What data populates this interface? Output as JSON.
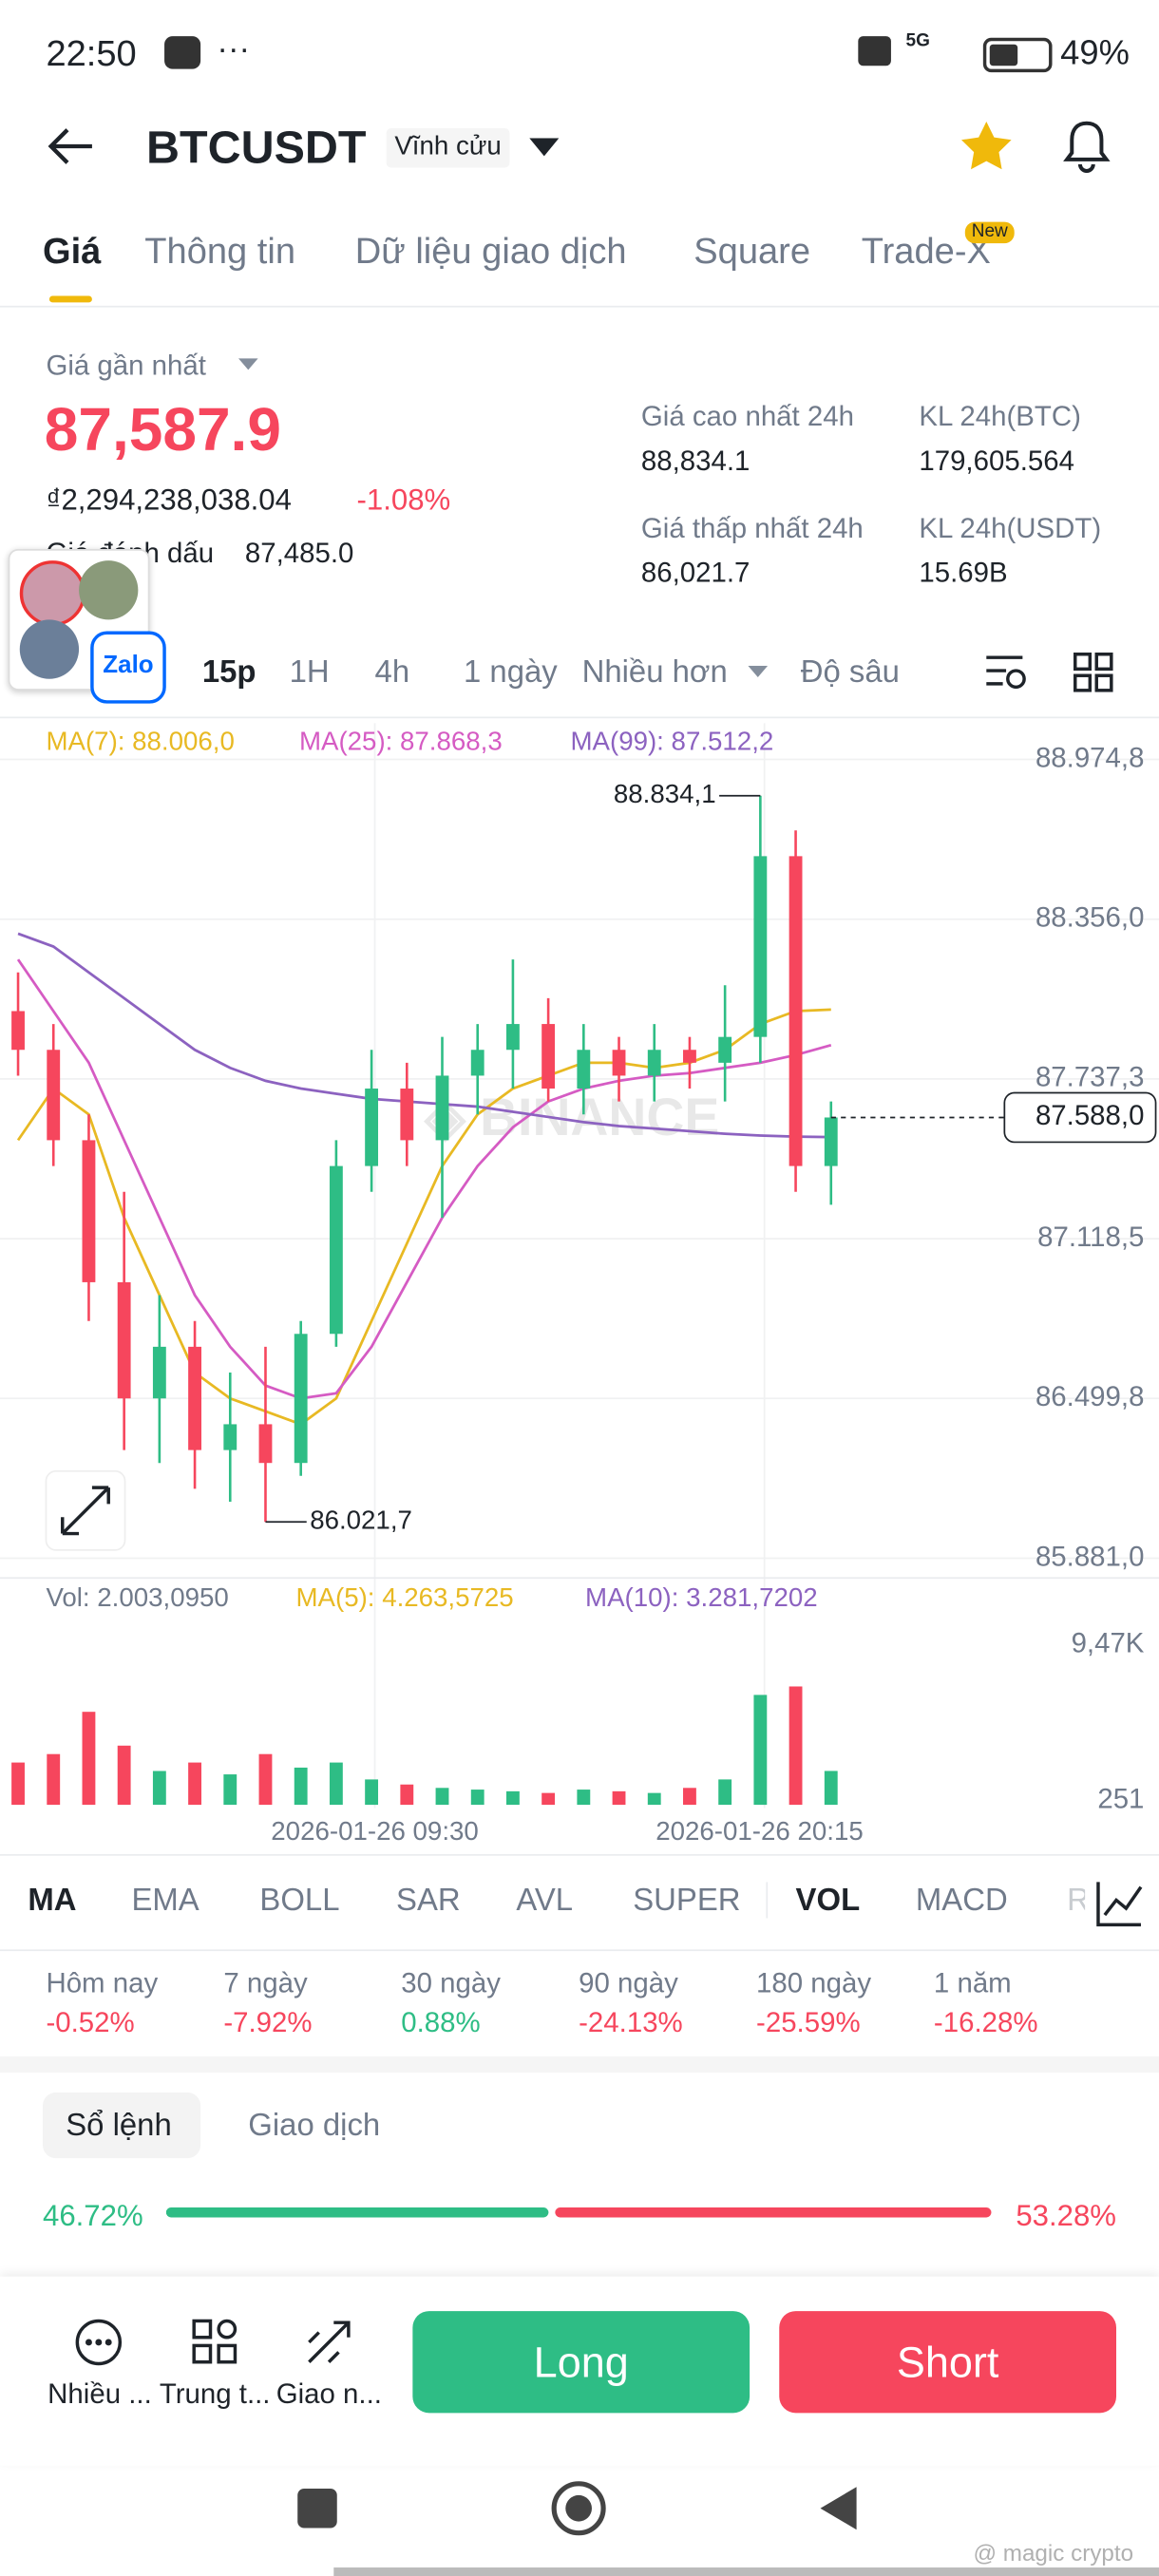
{
  "status": {
    "time": "22:50",
    "network": "5G",
    "battery": "49%"
  },
  "header": {
    "symbol": "BTCUSDT",
    "contract": "Vĩnh cửu"
  },
  "tabs": {
    "items": [
      "Giá",
      "Thông tin",
      "Dữ liệu giao dịch",
      "Square",
      "Trade-X"
    ],
    "badge": "New"
  },
  "price": {
    "label": "Giá gần nhất",
    "last": "87,587.9",
    "fiat": "₫2,294,238,038.04",
    "change": "-1.08%",
    "mark_label": "Giá đánh dấu",
    "mark": "87,485.0"
  },
  "stats": [
    {
      "label": "Giá cao nhất 24h",
      "value": "88,834.1"
    },
    {
      "label": "KL 24h(BTC)",
      "value": "179,605.564"
    },
    {
      "label": "Giá thấp nhất 24h",
      "value": "86,021.7"
    },
    {
      "label": "KL 24h(USDT)",
      "value": "15.69B"
    }
  ],
  "overlay": {
    "app": "Zalo"
  },
  "intervals": [
    "15p",
    "1H",
    "4h",
    "1 ngày",
    "Nhiều hơn",
    "Độ sâu"
  ],
  "chart_data": {
    "type": "candlestick",
    "ma_labels": [
      "MA(7): 88.006,0",
      "MA(25): 87.868,3",
      "MA(99): 87.512,2"
    ],
    "ylim": [
      85881.0,
      88974.8
    ],
    "yticks": [
      {
        "value": 88974.8,
        "label": "88.974,8"
      },
      {
        "value": 88356.0,
        "label": "88.356,0"
      },
      {
        "value": 87737.3,
        "label": "87.737,3"
      },
      {
        "value": 87118.5,
        "label": "87.118,5"
      },
      {
        "value": 86499.8,
        "label": "86.499,8"
      },
      {
        "value": 85881.0,
        "label": "85.881,0"
      }
    ],
    "x_labels": [
      "2026-01-26 09:30",
      "2026-01-26 20:15"
    ],
    "open": [
      88000,
      87850,
      87500,
      86950,
      86500,
      86700,
      86300,
      86400,
      86250,
      86750,
      87400,
      87700,
      87500,
      87750,
      87850,
      87950,
      87700,
      87850,
      87750,
      87850,
      87800,
      87900,
      88600,
      87400
    ],
    "high": [
      88150,
      87950,
      87600,
      87300,
      86900,
      86800,
      86600,
      86700,
      86800,
      87500,
      87850,
      87800,
      87900,
      87950,
      88200,
      88050,
      87950,
      87900,
      87950,
      87900,
      88100,
      88834.1,
      88700,
      87650
    ],
    "low": [
      87750,
      87400,
      86800,
      86300,
      86250,
      86150,
      86100,
      86021.7,
      86200,
      86700,
      87300,
      87400,
      87200,
      87600,
      87700,
      87650,
      87600,
      87650,
      87650,
      87700,
      87650,
      87800,
      87300,
      87250
    ],
    "close": [
      87850,
      87500,
      86950,
      86500,
      86700,
      86300,
      86400,
      86250,
      86750,
      87400,
      87700,
      87500,
      87750,
      87850,
      87950,
      87700,
      87850,
      87750,
      87850,
      87800,
      87900,
      88600,
      87400,
      87588.0
    ],
    "up_color": "#2ebd85",
    "down_color": "#f6465d",
    "ma_series": [
      {
        "color": "#e8b923",
        "values": [
          87500,
          87700,
          87600,
          87200,
          86900,
          86600,
          86500,
          86450,
          86400,
          86500,
          86800,
          87100,
          87400,
          87600,
          87700,
          87750,
          87800,
          87800,
          87780,
          87800,
          87850,
          87950,
          88000,
          88006.0
        ]
      },
      {
        "color": "#d55bc3",
        "values": [
          88200,
          88000,
          87800,
          87500,
          87200,
          86900,
          86700,
          86550,
          86500,
          86520,
          86700,
          86950,
          87200,
          87400,
          87550,
          87650,
          87700,
          87730,
          87750,
          87760,
          87780,
          87800,
          87830,
          87868.3
        ]
      },
      {
        "color": "#8c62c0",
        "values": [
          88300,
          88250,
          88150,
          88050,
          87950,
          87850,
          87780,
          87730,
          87700,
          87680,
          87660,
          87650,
          87640,
          87630,
          87610,
          87590,
          87570,
          87555,
          87545,
          87535,
          87525,
          87518,
          87514,
          87512.2
        ]
      }
    ],
    "high_label": "88.834,1",
    "low_label": "86.021,7",
    "current_label": "87.588,0",
    "volume": {
      "labels": [
        "Vol: 2.003,0950",
        "MA(5): 4.263,5725",
        "MA(10): 3.281,7202"
      ],
      "ylim": [
        0,
        10500
      ],
      "yticks": [
        {
          "value": 9470,
          "label": "9,47K"
        },
        251
      ],
      "values": [
        2500,
        3000,
        5500,
        3500,
        2000,
        2500,
        1800,
        3000,
        2200,
        2500,
        1500,
        1200,
        1000,
        900,
        800,
        700,
        900,
        800,
        700,
        1000,
        1500,
        6500,
        7000,
        2003.095
      ]
    }
  },
  "indicators": [
    "MA",
    "EMA",
    "BOLL",
    "SAR",
    "AVL",
    "SUPER",
    "VOL",
    "MACD",
    "R"
  ],
  "performance": [
    {
      "label": "Hôm nay",
      "value": "-0.52%"
    },
    {
      "label": "7 ngày",
      "value": "-7.92%"
    },
    {
      "label": "30 ngày",
      "value": "0.88%"
    },
    {
      "label": "90 ngày",
      "value": "-24.13%"
    },
    {
      "label": "180 ngày",
      "value": "-25.59%"
    },
    {
      "label": "1 năm",
      "value": "-16.28%"
    }
  ],
  "orderbook": {
    "tabs": [
      "Sổ lệnh",
      "Giao dịch"
    ],
    "values": [
      46.72,
      53.28
    ],
    "value_labels": [
      "46.72%",
      "53.28%"
    ]
  },
  "nav": {
    "items": [
      "Nhiều ...",
      "Trung t...",
      "Giao n..."
    ],
    "long": "Long",
    "short": "Short"
  },
  "watermark": "@ magic crypto"
}
